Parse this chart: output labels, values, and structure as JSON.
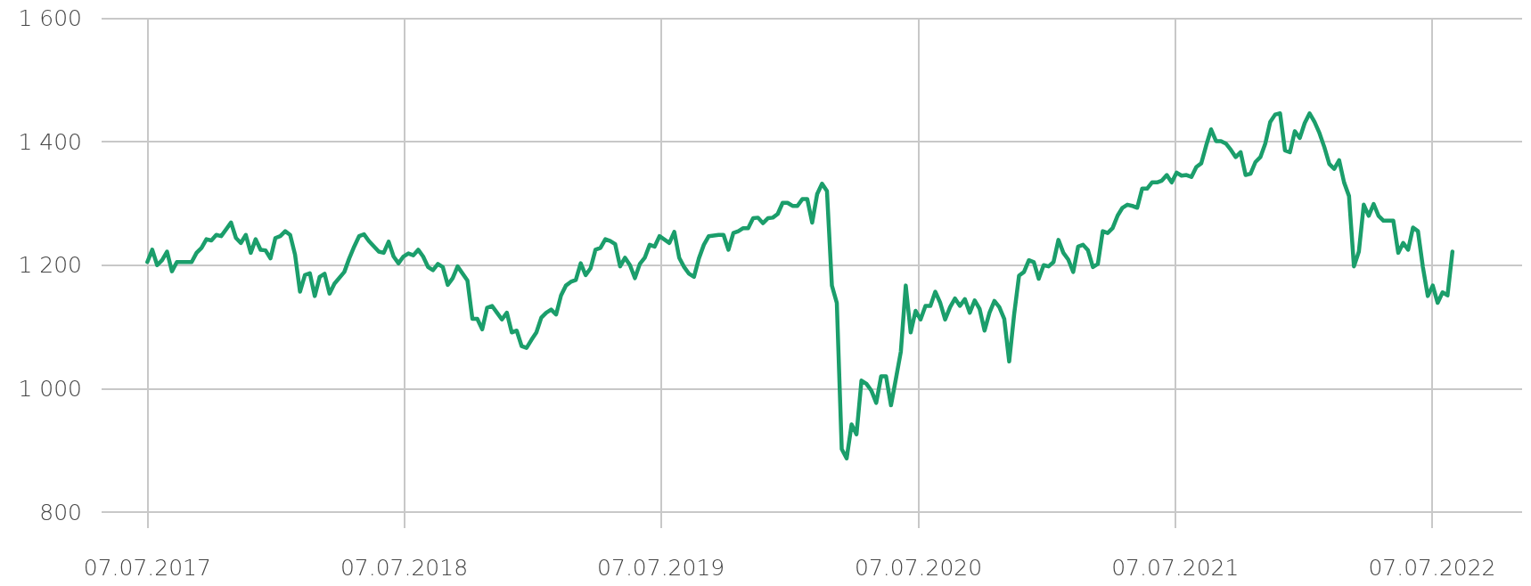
{
  "chart_data": {
    "type": "line",
    "line_style": "solid",
    "marker": "none",
    "grid": true,
    "xlim": [
      "2017-05-03",
      "2022-11-12"
    ],
    "xticks": [
      {
        "value": "2017-07-07",
        "label": "07.07.2017"
      },
      {
        "value": "2018-07-07",
        "label": "07.07.2018"
      },
      {
        "value": "2019-07-07",
        "label": "07.07.2019"
      },
      {
        "value": "2020-07-07",
        "label": "07.07.2020"
      },
      {
        "value": "2021-07-07",
        "label": "07.07.2021"
      },
      {
        "value": "2022-07-07",
        "label": "07.07.2022"
      }
    ],
    "ylim": [
      800,
      1600
    ],
    "yticks": [
      {
        "value": 800,
        "label": "800"
      },
      {
        "value": 1000,
        "label": "1 000"
      },
      {
        "value": 1200,
        "label": "1 200"
      },
      {
        "value": 1400,
        "label": "1 400"
      },
      {
        "value": 1600,
        "label": "1 600"
      }
    ],
    "series": [
      {
        "color": "#1b9e6b",
        "x": [
          "2017-07-07",
          "2017-07-14",
          "2017-07-21",
          "2017-07-28",
          "2017-08-04",
          "2017-08-11",
          "2017-08-18",
          "2017-09-08",
          "2017-09-15",
          "2017-09-22",
          "2017-09-29",
          "2017-10-06",
          "2017-10-13",
          "2017-10-20",
          "2017-11-03",
          "2017-11-10",
          "2017-11-17",
          "2017-11-24",
          "2017-12-01",
          "2017-12-08",
          "2017-12-15",
          "2017-12-22",
          "2017-12-29",
          "2018-01-05",
          "2018-01-12",
          "2018-01-19",
          "2018-01-26",
          "2018-02-02",
          "2018-02-09",
          "2018-02-16",
          "2018-02-23",
          "2018-03-02",
          "2018-03-09",
          "2018-03-16",
          "2018-03-23",
          "2018-03-30",
          "2018-04-13",
          "2018-04-20",
          "2018-04-27",
          "2018-05-04",
          "2018-05-11",
          "2018-05-18",
          "2018-06-01",
          "2018-06-08",
          "2018-06-15",
          "2018-06-22",
          "2018-06-29",
          "2018-07-06",
          "2018-07-13",
          "2018-07-20",
          "2018-07-27",
          "2018-08-03",
          "2018-08-10",
          "2018-08-17",
          "2018-08-24",
          "2018-08-31",
          "2018-09-07",
          "2018-09-14",
          "2018-09-21",
          "2018-10-05",
          "2018-10-12",
          "2018-10-19",
          "2018-10-26",
          "2018-11-02",
          "2018-11-09",
          "2018-11-16",
          "2018-11-23",
          "2018-11-30",
          "2018-12-07",
          "2018-12-14",
          "2018-12-21",
          "2018-12-28",
          "2019-01-04",
          "2019-01-11",
          "2019-01-18",
          "2019-01-25",
          "2019-02-01",
          "2019-02-08",
          "2019-02-15",
          "2019-02-22",
          "2019-03-01",
          "2019-03-08",
          "2019-03-15",
          "2019-03-22",
          "2019-03-29",
          "2019-04-05",
          "2019-04-12",
          "2019-04-19",
          "2019-04-26",
          "2019-05-03",
          "2019-05-10",
          "2019-05-17",
          "2019-05-24",
          "2019-05-31",
          "2019-06-07",
          "2019-06-14",
          "2019-06-21",
          "2019-06-28",
          "2019-07-05",
          "2019-07-19",
          "2019-07-26",
          "2019-08-02",
          "2019-08-09",
          "2019-08-16",
          "2019-08-23",
          "2019-08-30",
          "2019-09-06",
          "2019-09-13",
          "2019-09-27",
          "2019-10-04",
          "2019-10-11",
          "2019-10-18",
          "2019-10-25",
          "2019-11-01",
          "2019-11-08",
          "2019-11-15",
          "2019-11-22",
          "2019-11-29",
          "2019-12-06",
          "2019-12-13",
          "2019-12-20",
          "2019-12-27",
          "2020-01-03",
          "2020-01-10",
          "2020-01-17",
          "2020-01-24",
          "2020-01-31",
          "2020-02-07",
          "2020-02-14",
          "2020-02-21",
          "2020-02-28",
          "2020-03-06",
          "2020-03-13",
          "2020-03-20",
          "2020-03-27",
          "2020-04-03",
          "2020-04-10",
          "2020-04-17",
          "2020-04-24",
          "2020-05-01",
          "2020-05-08",
          "2020-05-15",
          "2020-05-22",
          "2020-05-29",
          "2020-06-05",
          "2020-06-12",
          "2020-06-19",
          "2020-06-26",
          "2020-07-03",
          "2020-07-10",
          "2020-07-17",
          "2020-07-24",
          "2020-07-31",
          "2020-08-07",
          "2020-08-14",
          "2020-08-21",
          "2020-08-28",
          "2020-09-04",
          "2020-09-11",
          "2020-09-18",
          "2020-09-25",
          "2020-10-02",
          "2020-10-09",
          "2020-10-16",
          "2020-10-23",
          "2020-10-30",
          "2020-11-06",
          "2020-11-13",
          "2020-11-20",
          "2020-11-27",
          "2020-12-04",
          "2020-12-11",
          "2020-12-18",
          "2020-12-25",
          "2021-01-01",
          "2021-01-08",
          "2021-01-15",
          "2021-01-22",
          "2021-01-29",
          "2021-02-05",
          "2021-02-12",
          "2021-02-19",
          "2021-02-26",
          "2021-03-05",
          "2021-03-12",
          "2021-03-19",
          "2021-03-26",
          "2021-04-02",
          "2021-04-09",
          "2021-04-16",
          "2021-04-23",
          "2021-04-30",
          "2021-05-07",
          "2021-05-14",
          "2021-05-21",
          "2021-05-28",
          "2021-06-04",
          "2021-06-11",
          "2021-06-18",
          "2021-06-25",
          "2021-07-02",
          "2021-07-09",
          "2021-07-16",
          "2021-07-23",
          "2021-07-30",
          "2021-08-06",
          "2021-08-13",
          "2021-08-20",
          "2021-08-27",
          "2021-09-03",
          "2021-09-10",
          "2021-09-17",
          "2021-09-24",
          "2021-10-01",
          "2021-10-08",
          "2021-10-15",
          "2021-10-22",
          "2021-10-29",
          "2021-11-05",
          "2021-11-12",
          "2021-11-19",
          "2021-11-26",
          "2021-12-03",
          "2021-12-10",
          "2021-12-17",
          "2021-12-24",
          "2021-12-31",
          "2022-01-07",
          "2022-01-14",
          "2022-01-21",
          "2022-01-28",
          "2022-02-04",
          "2022-02-11",
          "2022-02-18",
          "2022-02-25",
          "2022-03-04",
          "2022-03-11",
          "2022-03-18",
          "2022-03-25",
          "2022-04-01",
          "2022-04-08",
          "2022-04-15",
          "2022-04-22",
          "2022-04-29",
          "2022-05-06",
          "2022-05-13",
          "2022-05-20",
          "2022-05-27",
          "2022-06-03",
          "2022-06-10",
          "2022-06-17",
          "2022-06-24",
          "2022-07-01",
          "2022-07-08",
          "2022-07-15",
          "2022-07-22",
          "2022-07-29",
          "2022-08-05"
        ],
        "values": [
          1205,
          1225,
          1200,
          1208,
          1222,
          1190,
          1205,
          1205,
          1220,
          1228,
          1242,
          1240,
          1249,
          1247,
          1269,
          1244,
          1236,
          1249,
          1220,
          1242,
          1225,
          1224,
          1211,
          1244,
          1247,
          1255,
          1249,
          1217,
          1157,
          1184,
          1187,
          1150,
          1181,
          1186,
          1154,
          1170,
          1189,
          1211,
          1230,
          1247,
          1250,
          1239,
          1222,
          1220,
          1238,
          1214,
          1203,
          1214,
          1219,
          1216,
          1225,
          1214,
          1197,
          1192,
          1202,
          1197,
          1168,
          1179,
          1198,
          1175,
          1113,
          1113,
          1096,
          1131,
          1134,
          1123,
          1112,
          1123,
          1091,
          1094,
          1069,
          1066,
          1079,
          1091,
          1115,
          1123,
          1128,
          1120,
          1151,
          1167,
          1173,
          1176,
          1203,
          1184,
          1195,
          1225,
          1228,
          1242,
          1239,
          1234,
          1198,
          1212,
          1200,
          1179,
          1202,
          1212,
          1233,
          1230,
          1247,
          1236,
          1254,
          1212,
          1197,
          1186,
          1181,
          1211,
          1233,
          1247,
          1249,
          1249,
          1225,
          1252,
          1255,
          1260,
          1260,
          1276,
          1277,
          1268,
          1276,
          1277,
          1283,
          1301,
          1301,
          1296,
          1296,
          1307,
          1307,
          1269,
          1315,
          1332,
          1320,
          1167,
          1139,
          902,
          887,
          942,
          926,
          1013,
          1008,
          997,
          977,
          1020,
          1020,
          973,
          1016,
          1060,
          1167,
          1091,
          1126,
          1112,
          1134,
          1134,
          1157,
          1139,
          1112,
          1132,
          1146,
          1134,
          1145,
          1123,
          1143,
          1129,
          1094,
          1123,
          1142,
          1132,
          1113,
          1044,
          1120,
          1183,
          1189,
          1208,
          1205,
          1178,
          1200,
          1198,
          1205,
          1241,
          1220,
          1209,
          1189,
          1230,
          1233,
          1224,
          1197,
          1202,
          1255,
          1252,
          1260,
          1280,
          1293,
          1298,
          1296,
          1293,
          1324,
          1324,
          1334,
          1334,
          1337,
          1346,
          1334,
          1350,
          1345,
          1346,
          1343,
          1359,
          1365,
          1394,
          1420,
          1401,
          1401,
          1397,
          1387,
          1375,
          1383,
          1346,
          1348,
          1367,
          1375,
          1397,
          1432,
          1444,
          1446,
          1386,
          1383,
          1417,
          1406,
          1430,
          1446,
          1432,
          1414,
          1391,
          1364,
          1356,
          1370,
          1334,
          1312,
          1198,
          1222,
          1298,
          1280,
          1299,
          1280,
          1272,
          1272,
          1272,
          1220,
          1236,
          1225,
          1261,
          1255,
          1197,
          1150,
          1167,
          1139,
          1156,
          1151,
          1222
        ]
      }
    ]
  }
}
